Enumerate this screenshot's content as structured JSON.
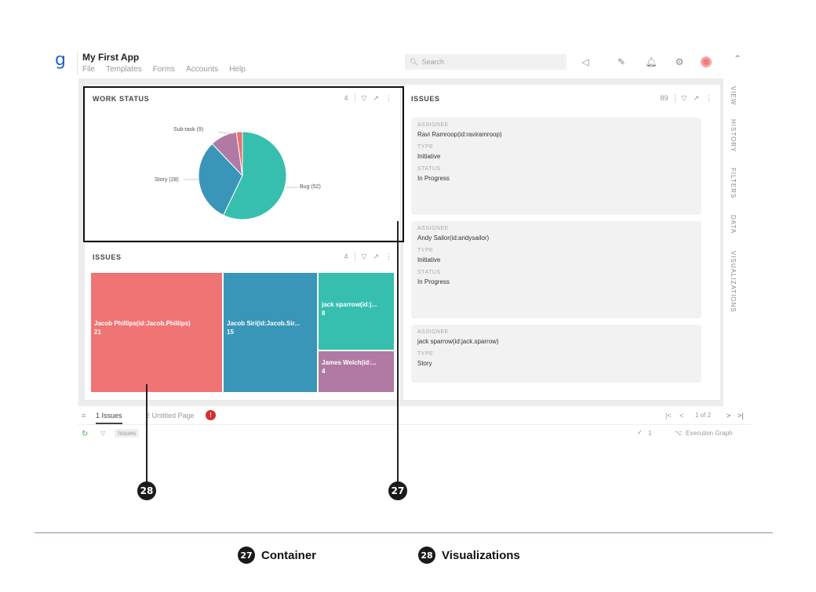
{
  "app": {
    "logo": "g",
    "title": "My First App",
    "menu": [
      "File",
      "Templates",
      "Forms",
      "Accounts",
      "Help"
    ],
    "search_placeholder": "Search"
  },
  "work_status": {
    "title": "WORK STATUS",
    "count": "4",
    "chart_data": {
      "type": "pie",
      "title": "",
      "slices": [
        {
          "label": "Bug (52)",
          "value": 52,
          "color": "#36bfae"
        },
        {
          "label": "Story (28)",
          "value": 28,
          "color": "#3a96b8"
        },
        {
          "label": "Sub-task (9)",
          "value": 9,
          "color": "#b07aa4"
        },
        {
          "label": "",
          "value": 2,
          "color": "#ef6f6f"
        }
      ]
    }
  },
  "issues_treemap": {
    "title": "ISSUES",
    "count": "4",
    "tiles": [
      {
        "label": "Jacob Phillips(id:Jacob.Phillips)",
        "value": "21",
        "color": "#f07474"
      },
      {
        "label": "Jacob Siri(id:Jacob.Sir...",
        "value": "15",
        "color": "#3a96b8"
      },
      {
        "label": "jack sparrow(id:j...",
        "value": "8",
        "color": "#36bfae"
      },
      {
        "label": "James Welch(id:...",
        "value": "4",
        "color": "#b07aa4"
      }
    ]
  },
  "issues_list": {
    "title": "ISSUES",
    "count": "89",
    "cards": [
      {
        "assignee_label": "ASSIGNEE",
        "assignee": "Ravi Ramroop(id:raviramroop)",
        "type_label": "TYPE",
        "type": "Initiative",
        "status_label": "STATUS",
        "status": "In Progress"
      },
      {
        "assignee_label": "ASSIGNEE",
        "assignee": "Andy Sailor(id:andysailor)",
        "type_label": "TYPE",
        "type": "Initiative",
        "status_label": "STATUS",
        "status": "In Progress"
      },
      {
        "assignee_label": "ASSIGNEE",
        "assignee": "jack sparrow(id:jack.sparrow)",
        "type_label": "TYPE",
        "type": "Story"
      }
    ]
  },
  "side_tabs": [
    "VIEW",
    "HISTORY",
    "FILTERS",
    "DATA",
    "VISUALIZATIONS"
  ],
  "pages": {
    "tab1": "1 Issues",
    "tab2": "2 Untitled Page",
    "tab2_badge": "!",
    "pagination": "1 of 2"
  },
  "status": {
    "filter_chip": "Issues",
    "check_count": "1",
    "execution_graph": "Execution Graph"
  },
  "callouts": {
    "n27": "27",
    "n28": "28",
    "label27": "Container",
    "label28": "Visualizations"
  }
}
